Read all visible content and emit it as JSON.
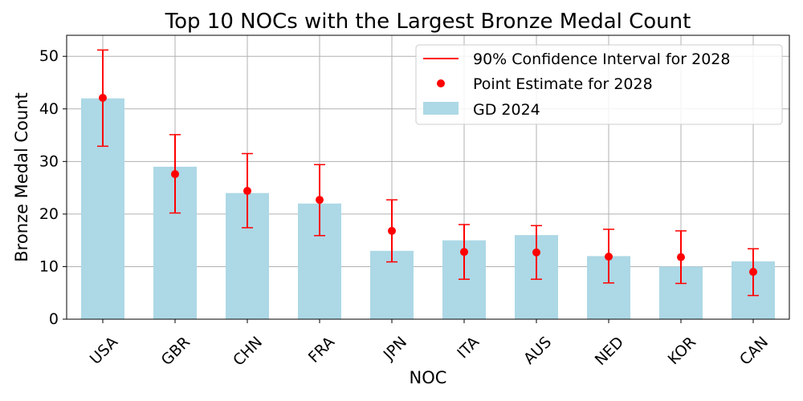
{
  "chart_data": {
    "type": "bar",
    "title": "Top 10 NOCs with the Largest Bronze Medal Count",
    "xlabel": "NOC",
    "ylabel": "Bronze Medal Count",
    "categories": [
      "USA",
      "GBR",
      "CHN",
      "FRA",
      "JPN",
      "ITA",
      "AUS",
      "NED",
      "KOR",
      "CAN"
    ],
    "ylim": [
      0,
      54
    ],
    "yticks": [
      0,
      10,
      20,
      30,
      40,
      50
    ],
    "grid": true,
    "legend_position": "top-right",
    "bars": {
      "name": "GD 2024",
      "color": "#add8e6",
      "values": [
        42,
        29,
        24,
        22,
        13,
        15,
        16,
        12,
        10,
        11
      ]
    },
    "points": {
      "name": "Point Estimate for 2028",
      "color": "#ff0000",
      "values": [
        42.1,
        27.6,
        24.4,
        22.7,
        16.8,
        12.8,
        12.7,
        11.9,
        11.8,
        9.0
      ]
    },
    "intervals": {
      "name": "90% Confidence Interval for 2028",
      "color": "#ff0000",
      "lower": [
        32.9,
        20.2,
        17.4,
        15.9,
        10.9,
        7.6,
        7.6,
        6.9,
        6.8,
        4.5
      ],
      "upper": [
        51.2,
        35.1,
        31.5,
        29.4,
        22.7,
        18.0,
        17.8,
        17.1,
        16.8,
        13.4
      ]
    }
  }
}
